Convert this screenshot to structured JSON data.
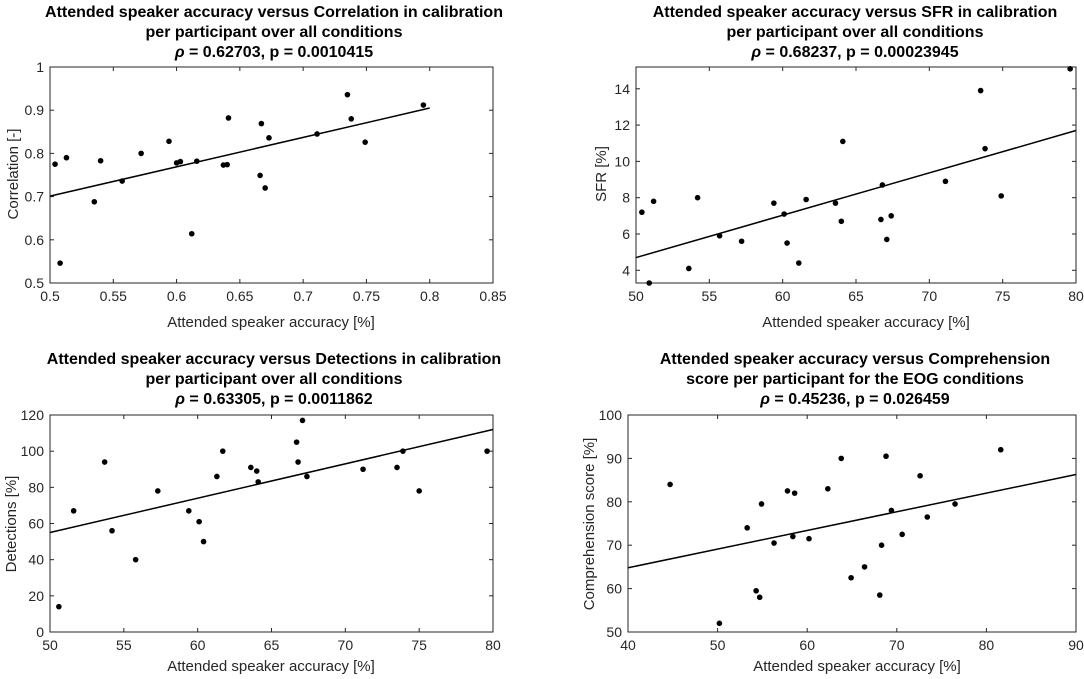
{
  "chart_data": [
    {
      "type": "scatter",
      "title": [
        "Attended speaker accuracy versus Correlation in calibration",
        "per participant over all conditions"
      ],
      "stat_rho": "ρ",
      "stat_rest": " = 0.62703, p = 0.0010415",
      "xlabel": "Attended speaker accuracy [%]",
      "ylabel": "Correlation [-]",
      "xlim": [
        0.5,
        0.85
      ],
      "ylim": [
        0.5,
        1.0
      ],
      "xticks": [
        0.5,
        0.55,
        0.6,
        0.65,
        0.7,
        0.75,
        0.8,
        0.85
      ],
      "yticks": [
        0.5,
        0.6,
        0.7,
        0.8,
        0.9,
        1
      ],
      "xtick_labels": [
        "0.5",
        "0.55",
        "0.6",
        "0.65",
        "0.7",
        "0.75",
        "0.8",
        "0.85"
      ],
      "ytick_labels": [
        "0.5",
        "0.6",
        "0.7",
        "0.8",
        "0.9",
        "1"
      ],
      "x": [
        0.504,
        0.508,
        0.513,
        0.535,
        0.54,
        0.557,
        0.572,
        0.594,
        0.6,
        0.603,
        0.612,
        0.616,
        0.637,
        0.64,
        0.641,
        0.666,
        0.667,
        0.67,
        0.673,
        0.711,
        0.735,
        0.738,
        0.749,
        0.795
      ],
      "y": [
        0.775,
        0.546,
        0.79,
        0.688,
        0.783,
        0.736,
        0.8,
        0.828,
        0.778,
        0.781,
        0.614,
        0.782,
        0.773,
        0.774,
        0.882,
        0.749,
        0.869,
        0.72,
        0.836,
        0.845,
        0.936,
        0.88,
        0.826,
        0.912
      ],
      "fit_line": {
        "x": [
          0.5,
          0.8
        ],
        "y": [
          0.701,
          0.905
        ]
      }
    },
    {
      "type": "scatter",
      "title": [
        "Attended speaker accuracy versus SFR in calibration",
        "per participant over all conditions"
      ],
      "stat_rho": "ρ",
      "stat_rest": " = 0.68237, p = 0.00023945",
      "xlabel": "Attended speaker accuracy [%]",
      "ylabel": "SFR [%]",
      "xlim": [
        50,
        80
      ],
      "ylim": [
        3.3,
        15.2
      ],
      "xticks": [
        50,
        55,
        60,
        65,
        70,
        75,
        80
      ],
      "yticks": [
        4,
        6,
        8,
        10,
        12,
        14
      ],
      "xtick_labels": [
        "50",
        "55",
        "60",
        "65",
        "70",
        "75",
        "80"
      ],
      "ytick_labels": [
        "4",
        "6",
        "8",
        "10",
        "12",
        "14"
      ],
      "x": [
        50.4,
        50.9,
        51.2,
        53.6,
        54.2,
        55.7,
        57.2,
        59.4,
        60.1,
        60.3,
        61.1,
        61.6,
        63.6,
        64.0,
        64.1,
        66.7,
        66.8,
        67.1,
        67.4,
        71.1,
        73.5,
        73.8,
        74.9,
        79.6
      ],
      "y": [
        7.2,
        3.3,
        7.8,
        4.1,
        8.0,
        5.9,
        5.6,
        7.7,
        7.1,
        5.5,
        4.4,
        7.9,
        7.7,
        6.7,
        11.1,
        6.8,
        8.7,
        5.7,
        7.0,
        8.9,
        13.9,
        10.7,
        8.1,
        15.1
      ],
      "fit_line": {
        "x": [
          50,
          80
        ],
        "y": [
          4.7,
          11.7
        ]
      }
    },
    {
      "type": "scatter",
      "title": [
        "Attended speaker accuracy versus Detections in calibration",
        "per participant over all conditions"
      ],
      "stat_rho": "ρ",
      "stat_rest": " = 0.63305, p = 0.0011862",
      "xlabel": "Attended speaker accuracy [%]",
      "ylabel": "Detections [%]",
      "xlim": [
        50,
        80
      ],
      "ylim": [
        0,
        120
      ],
      "xticks": [
        50,
        55,
        60,
        65,
        70,
        75,
        80
      ],
      "yticks": [
        0,
        20,
        40,
        60,
        80,
        100,
        120
      ],
      "xtick_labels": [
        "50",
        "55",
        "60",
        "65",
        "70",
        "75",
        "80"
      ],
      "ytick_labels": [
        "0",
        "20",
        "40",
        "60",
        "80",
        "100",
        "120"
      ],
      "x": [
        50.6,
        51.6,
        53.7,
        54.2,
        55.8,
        57.3,
        59.4,
        60.1,
        60.4,
        61.3,
        61.7,
        63.6,
        64.0,
        64.1,
        66.7,
        66.8,
        67.1,
        67.4,
        71.2,
        73.5,
        73.9,
        75.0,
        79.6
      ],
      "y": [
        14,
        67,
        94,
        56,
        40,
        78,
        67,
        61,
        50,
        86,
        100,
        91,
        89,
        83,
        105,
        94,
        117,
        86,
        90,
        91,
        100,
        78,
        100
      ],
      "fit_line": {
        "x": [
          50,
          80
        ],
        "y": [
          55,
          112
        ]
      }
    },
    {
      "type": "scatter",
      "title": [
        "Attended speaker accuracy versus Comprehension",
        "score per participant for the EOG conditions"
      ],
      "stat_rho": "ρ",
      "stat_rest": " = 0.45236, p = 0.026459",
      "xlabel": "Attended speaker accuracy [%]",
      "ylabel": "Comprehension score [%]",
      "xlim": [
        40,
        90
      ],
      "ylim": [
        50,
        100
      ],
      "xticks": [
        40,
        50,
        60,
        70,
        80,
        90
      ],
      "yticks": [
        50,
        60,
        70,
        80,
        90,
        100
      ],
      "xtick_labels": [
        "40",
        "50",
        "60",
        "70",
        "80",
        "90"
      ],
      "ytick_labels": [
        "50",
        "60",
        "70",
        "80",
        "90",
        "100"
      ],
      "x": [
        44.7,
        50.2,
        53.3,
        54.3,
        54.7,
        54.9,
        56.3,
        57.8,
        58.4,
        58.6,
        60.2,
        62.3,
        63.8,
        64.9,
        66.4,
        68.1,
        68.3,
        68.8,
        69.4,
        70.6,
        72.6,
        73.4,
        76.5,
        81.6
      ],
      "y": [
        84,
        52,
        74,
        59.5,
        58,
        79.5,
        70.5,
        82.5,
        72,
        82,
        71.5,
        83,
        90,
        62.5,
        65,
        58.5,
        70,
        90.5,
        78,
        72.5,
        86,
        76.5,
        79.5,
        92
      ],
      "fit_line": {
        "x": [
          40,
          90
        ],
        "y": [
          64.8,
          86.3
        ]
      }
    }
  ]
}
